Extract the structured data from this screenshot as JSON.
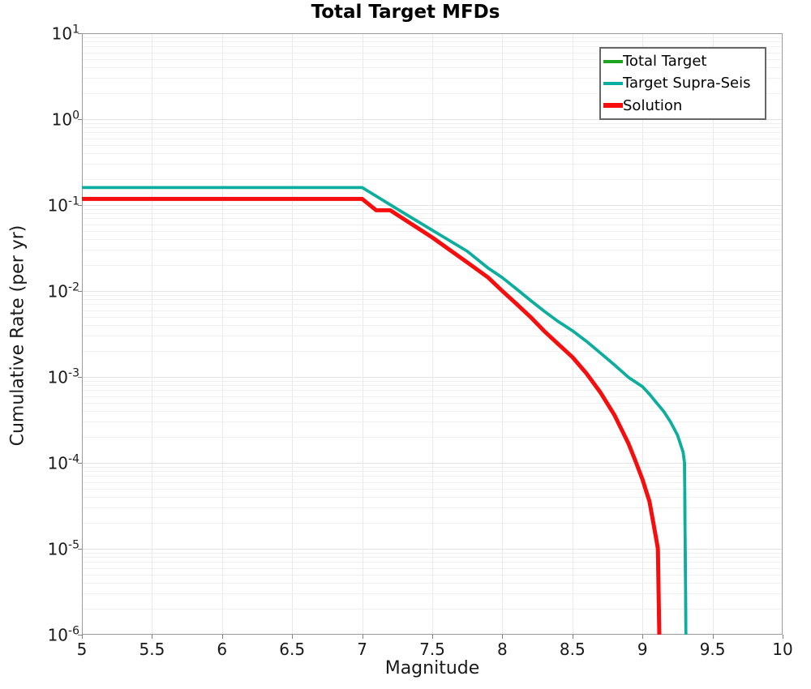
{
  "chart_data": {
    "type": "line",
    "title": "Total Target MFDs",
    "xlabel": "Magnitude",
    "ylabel": "Cumulative Rate (per yr)",
    "x_axis": {
      "min": 5,
      "max": 10,
      "ticks": [
        {
          "v": 5,
          "label": "5"
        },
        {
          "v": 5.5,
          "label": "5.5"
        },
        {
          "v": 6,
          "label": "6"
        },
        {
          "v": 6.5,
          "label": "6.5"
        },
        {
          "v": 7,
          "label": "7"
        },
        {
          "v": 7.5,
          "label": "7.5"
        },
        {
          "v": 8,
          "label": "8"
        },
        {
          "v": 8.5,
          "label": "8.5"
        },
        {
          "v": 9,
          "label": "9"
        },
        {
          "v": 9.5,
          "label": "9.5"
        },
        {
          "v": 10,
          "label": "10"
        }
      ]
    },
    "y_axis": {
      "scale": "log",
      "min": 1e-06,
      "max": 10,
      "base_label": "10",
      "tick_exponents": [
        "1",
        "0",
        "-1",
        "-2",
        "-3",
        "-4",
        "-5",
        "-6"
      ]
    },
    "grid": {
      "minor": true,
      "major": true,
      "vertical": true
    },
    "legend_position": "top-right",
    "series": [
      {
        "name": "Total Target",
        "color": "#1EA41E",
        "width": 3.6,
        "legend_thickness": 4,
        "points": [
          [
            5.0,
            0.16
          ],
          [
            7.0,
            0.16
          ],
          [
            7.25,
            0.09
          ],
          [
            7.5,
            0.051
          ],
          [
            7.75,
            0.029
          ],
          [
            7.9,
            0.0184
          ],
          [
            8.0,
            0.0143
          ],
          [
            8.1,
            0.0106
          ],
          [
            8.2,
            0.0078
          ],
          [
            8.3,
            0.0058
          ],
          [
            8.4,
            0.0044
          ],
          [
            8.5,
            0.00345
          ],
          [
            8.6,
            0.0026
          ],
          [
            8.7,
            0.0019
          ],
          [
            8.8,
            0.00138
          ],
          [
            8.9,
            0.00099
          ],
          [
            9.0,
            0.00077
          ],
          [
            9.05,
            0.00063
          ],
          [
            9.1,
            0.0005
          ],
          [
            9.15,
            0.0004
          ],
          [
            9.2,
            0.0003
          ],
          [
            9.25,
            0.00021
          ],
          [
            9.29,
            0.000133
          ],
          [
            9.3,
            0.0001
          ],
          [
            9.31,
            1e-06
          ]
        ]
      },
      {
        "name": "Target Supra-Seis",
        "color": "#0BAEA0",
        "width": 3.6,
        "legend_thickness": 4,
        "points": [
          [
            5.0,
            0.16
          ],
          [
            7.0,
            0.16
          ],
          [
            7.25,
            0.09
          ],
          [
            7.5,
            0.051
          ],
          [
            7.75,
            0.029
          ],
          [
            7.9,
            0.0184
          ],
          [
            8.0,
            0.0143
          ],
          [
            8.1,
            0.0106
          ],
          [
            8.2,
            0.0078
          ],
          [
            8.3,
            0.0058
          ],
          [
            8.4,
            0.0044
          ],
          [
            8.5,
            0.00345
          ],
          [
            8.6,
            0.0026
          ],
          [
            8.7,
            0.0019
          ],
          [
            8.8,
            0.00138
          ],
          [
            8.9,
            0.00099
          ],
          [
            9.0,
            0.00077
          ],
          [
            9.05,
            0.00063
          ],
          [
            9.1,
            0.0005
          ],
          [
            9.15,
            0.0004
          ],
          [
            9.2,
            0.0003
          ],
          [
            9.25,
            0.00021
          ],
          [
            9.29,
            0.000133
          ],
          [
            9.3,
            0.0001
          ],
          [
            9.31,
            1e-06
          ]
        ]
      },
      {
        "name": "Solution",
        "color": "#F60D0D",
        "width": 5,
        "legend_thickness": 6,
        "points": [
          [
            5.0,
            0.118
          ],
          [
            7.0,
            0.118
          ],
          [
            7.1,
            0.087
          ],
          [
            7.2,
            0.087
          ],
          [
            7.5,
            0.042
          ],
          [
            7.75,
            0.0215
          ],
          [
            7.9,
            0.0143
          ],
          [
            8.0,
            0.01
          ],
          [
            8.1,
            0.0071
          ],
          [
            8.2,
            0.005
          ],
          [
            8.3,
            0.0034
          ],
          [
            8.4,
            0.0024
          ],
          [
            8.5,
            0.0017
          ],
          [
            8.6,
            0.0011
          ],
          [
            8.7,
            0.00066
          ],
          [
            8.8,
            0.00036
          ],
          [
            8.9,
            0.000168
          ],
          [
            8.95,
            0.000105
          ],
          [
            9.0,
            6.4e-05
          ],
          [
            9.05,
            3.55e-05
          ],
          [
            9.1,
            1.25e-05
          ],
          [
            9.11,
            1e-05
          ],
          [
            9.12,
            1e-06
          ]
        ]
      }
    ]
  },
  "style": {
    "grid_minor": "#F0F0F0",
    "grid_major": "#E3E3E3",
    "grid_vertical": "#EAEAEA",
    "spine": "#9C9C9C",
    "tick": "#808080",
    "text": "#1A1A1A",
    "legend_border": "#666666",
    "legend_background": "#FFFFFF"
  }
}
